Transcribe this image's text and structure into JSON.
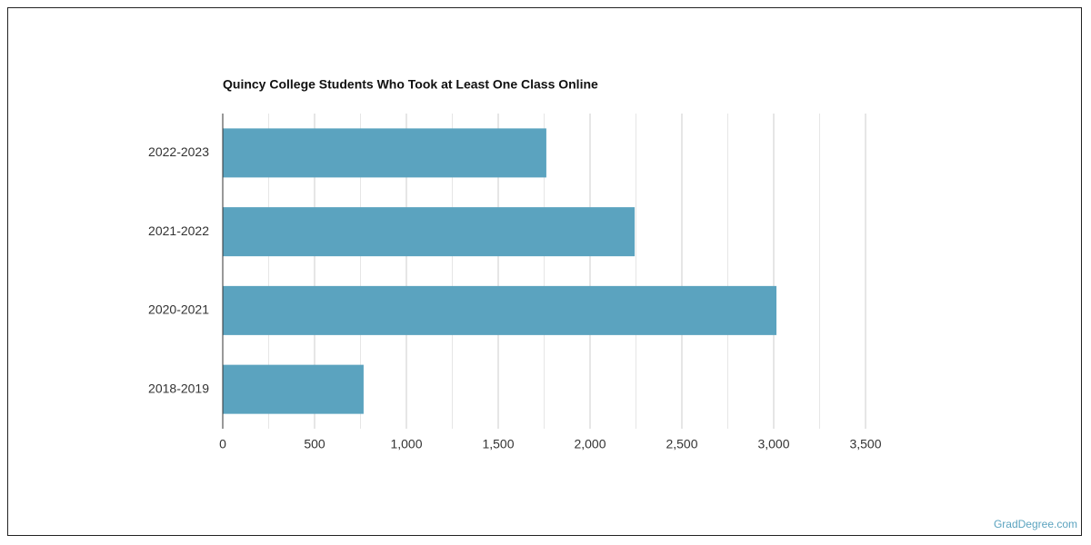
{
  "chart_data": {
    "type": "hbar",
    "title": "Quincy College Students Who Took at Least One Class Online",
    "categories": [
      "2022-2023",
      "2021-2022",
      "2020-2021",
      "2018-2019"
    ],
    "values": [
      1762,
      2243,
      3015,
      767
    ],
    "color": "#5ba3bf",
    "xlim": [
      0,
      3500
    ],
    "xticks": [
      0,
      500,
      {
        "value": 1000,
        "label": "1,000"
      },
      {
        "value": 1500,
        "label": "1,500"
      },
      {
        "value": 2000,
        "label": "2,000"
      },
      {
        "value": 2500,
        "label": "2,500"
      },
      {
        "value": 3000,
        "label": "3,000"
      },
      {
        "value": 3500,
        "label": "3,500"
      }
    ],
    "xgrid_minor": [
      250,
      750,
      1250,
      1750,
      2250,
      2750,
      3250
    ],
    "grid": true,
    "source": "GradDegree.com"
  }
}
